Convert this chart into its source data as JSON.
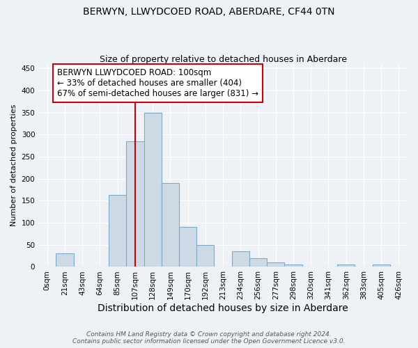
{
  "title": "BERWYN, LLWYDCOED ROAD, ABERDARE, CF44 0TN",
  "subtitle": "Size of property relative to detached houses in Aberdare",
  "xlabel": "Distribution of detached houses by size in Aberdare",
  "ylabel": "Number of detached properties",
  "bin_labels": [
    "0sqm",
    "21sqm",
    "43sqm",
    "64sqm",
    "85sqm",
    "107sqm",
    "128sqm",
    "149sqm",
    "170sqm",
    "192sqm",
    "213sqm",
    "234sqm",
    "256sqm",
    "277sqm",
    "298sqm",
    "320sqm",
    "341sqm",
    "362sqm",
    "383sqm",
    "405sqm",
    "426sqm"
  ],
  "bar_heights": [
    0,
    30,
    0,
    0,
    163,
    285,
    350,
    190,
    90,
    50,
    0,
    35,
    20,
    10,
    5,
    0,
    0,
    5,
    0,
    5,
    0
  ],
  "bar_color": "#cdd9e5",
  "bar_edge_color": "#7aaac8",
  "property_bin_index": 5,
  "property_sqm": 100,
  "red_line_color": "#cc0000",
  "annotation_line1": "BERWYN LLWYDCOED ROAD: 100sqm",
  "annotation_line2": "← 33% of detached houses are smaller (404)",
  "annotation_line3": "67% of semi-detached houses are larger (831) →",
  "annotation_box_color": "#ffffff",
  "annotation_box_edge": "#cc0000",
  "ylim": [
    0,
    460
  ],
  "yticks": [
    0,
    50,
    100,
    150,
    200,
    250,
    300,
    350,
    400,
    450
  ],
  "footer_line1": "Contains HM Land Registry data © Crown copyright and database right 2024.",
  "footer_line2": "Contains public sector information licensed under the Open Government Licence v3.0.",
  "bg_color": "#eef2f7",
  "grid_color": "#ffffff",
  "title_fontsize": 10,
  "subtitle_fontsize": 9,
  "xlabel_fontsize": 10,
  "ylabel_fontsize": 8,
  "tick_fontsize": 7.5,
  "annotation_fontsize": 8.5,
  "footer_fontsize": 6.5
}
